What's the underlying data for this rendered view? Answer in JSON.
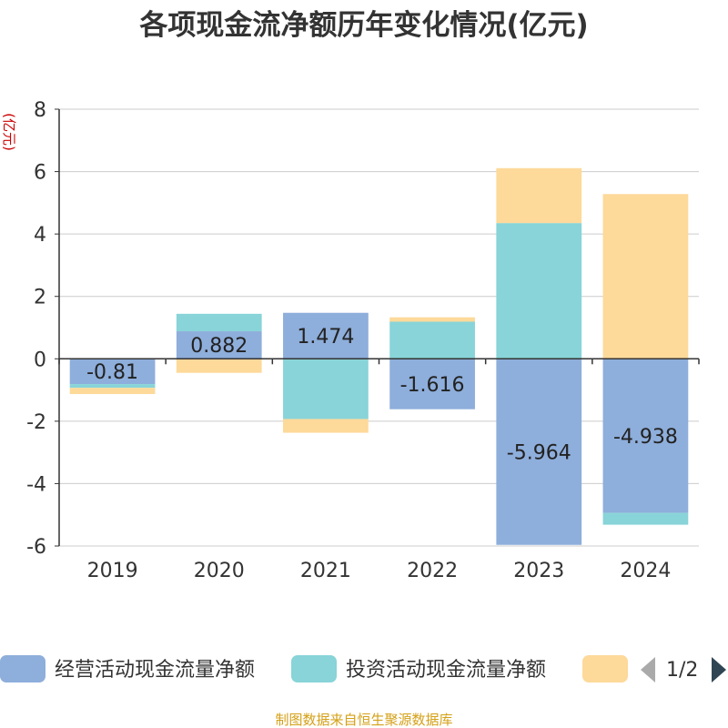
{
  "chart_data": {
    "type": "bar",
    "stacked": true,
    "title": "各项现金流净额历年变化情况(亿元)",
    "ylabel": "(亿元)",
    "categories": [
      "2019",
      "2020",
      "2021",
      "2022",
      "2023",
      "2024"
    ],
    "ylim": [
      -6,
      8
    ],
    "yticks": [
      "-6",
      "-4",
      "-2",
      "0",
      "2",
      "4",
      "6",
      "8"
    ],
    "grid": true,
    "series": [
      {
        "name": "经营活动现金流量净额",
        "color": "#8eaedb",
        "values": [
          -0.81,
          0.882,
          1.474,
          -1.616,
          -5.964,
          -4.938
        ],
        "labels": [
          "-0.81",
          "0.882",
          "1.474",
          "-1.616",
          "-5.964",
          "-4.938"
        ]
      },
      {
        "name": "投资活动现金流量净额",
        "color": "#88d4d8",
        "values": [
          -0.12,
          0.56,
          -1.93,
          1.19,
          4.35,
          -0.38
        ]
      },
      {
        "name": "",
        "color": "#fdd99a",
        "values": [
          -0.2,
          -0.45,
          -0.44,
          0.14,
          1.76,
          5.28
        ]
      }
    ],
    "legend": {
      "position": "bottom",
      "page": "1/2"
    },
    "source": "制图数据来自恒生聚源数据库"
  }
}
